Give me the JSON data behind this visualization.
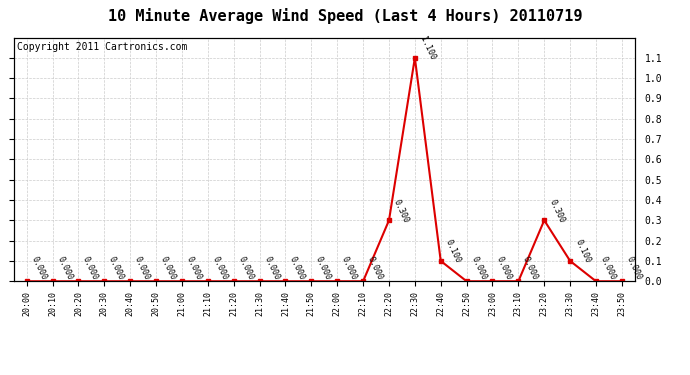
{
  "title": "10 Minute Average Wind Speed (Last 4 Hours) 20110719",
  "copyright": "Copyright 2011 Cartronics.com",
  "x_labels": [
    "20:00",
    "20:10",
    "20:20",
    "20:30",
    "20:40",
    "20:50",
    "21:00",
    "21:10",
    "21:20",
    "21:30",
    "21:40",
    "21:50",
    "22:00",
    "22:10",
    "22:20",
    "22:30",
    "22:40",
    "22:50",
    "23:00",
    "23:10",
    "23:20",
    "23:30",
    "23:40",
    "23:50"
  ],
  "y_values": [
    0.0,
    0.0,
    0.0,
    0.0,
    0.0,
    0.0,
    0.0,
    0.0,
    0.0,
    0.0,
    0.0,
    0.0,
    0.0,
    0.0,
    0.3,
    1.1,
    0.1,
    0.0,
    0.0,
    0.0,
    0.3,
    0.1,
    0.0,
    0.0
  ],
  "line_color": "#dd0000",
  "marker_color": "#dd0000",
  "background_color": "#ffffff",
  "grid_color": "#cccccc",
  "title_fontsize": 11,
  "copyright_fontsize": 7,
  "ylim": [
    0.0,
    1.2
  ],
  "yticks": [
    0.0,
    0.1,
    0.2,
    0.3,
    0.4,
    0.5,
    0.6,
    0.7,
    0.8,
    0.9,
    1.0,
    1.1
  ],
  "annotation_indices": [
    14,
    15,
    16,
    20,
    21
  ],
  "annotation_values": [
    "0.300",
    "1.100",
    "0.100",
    "0.300",
    "0.100"
  ]
}
